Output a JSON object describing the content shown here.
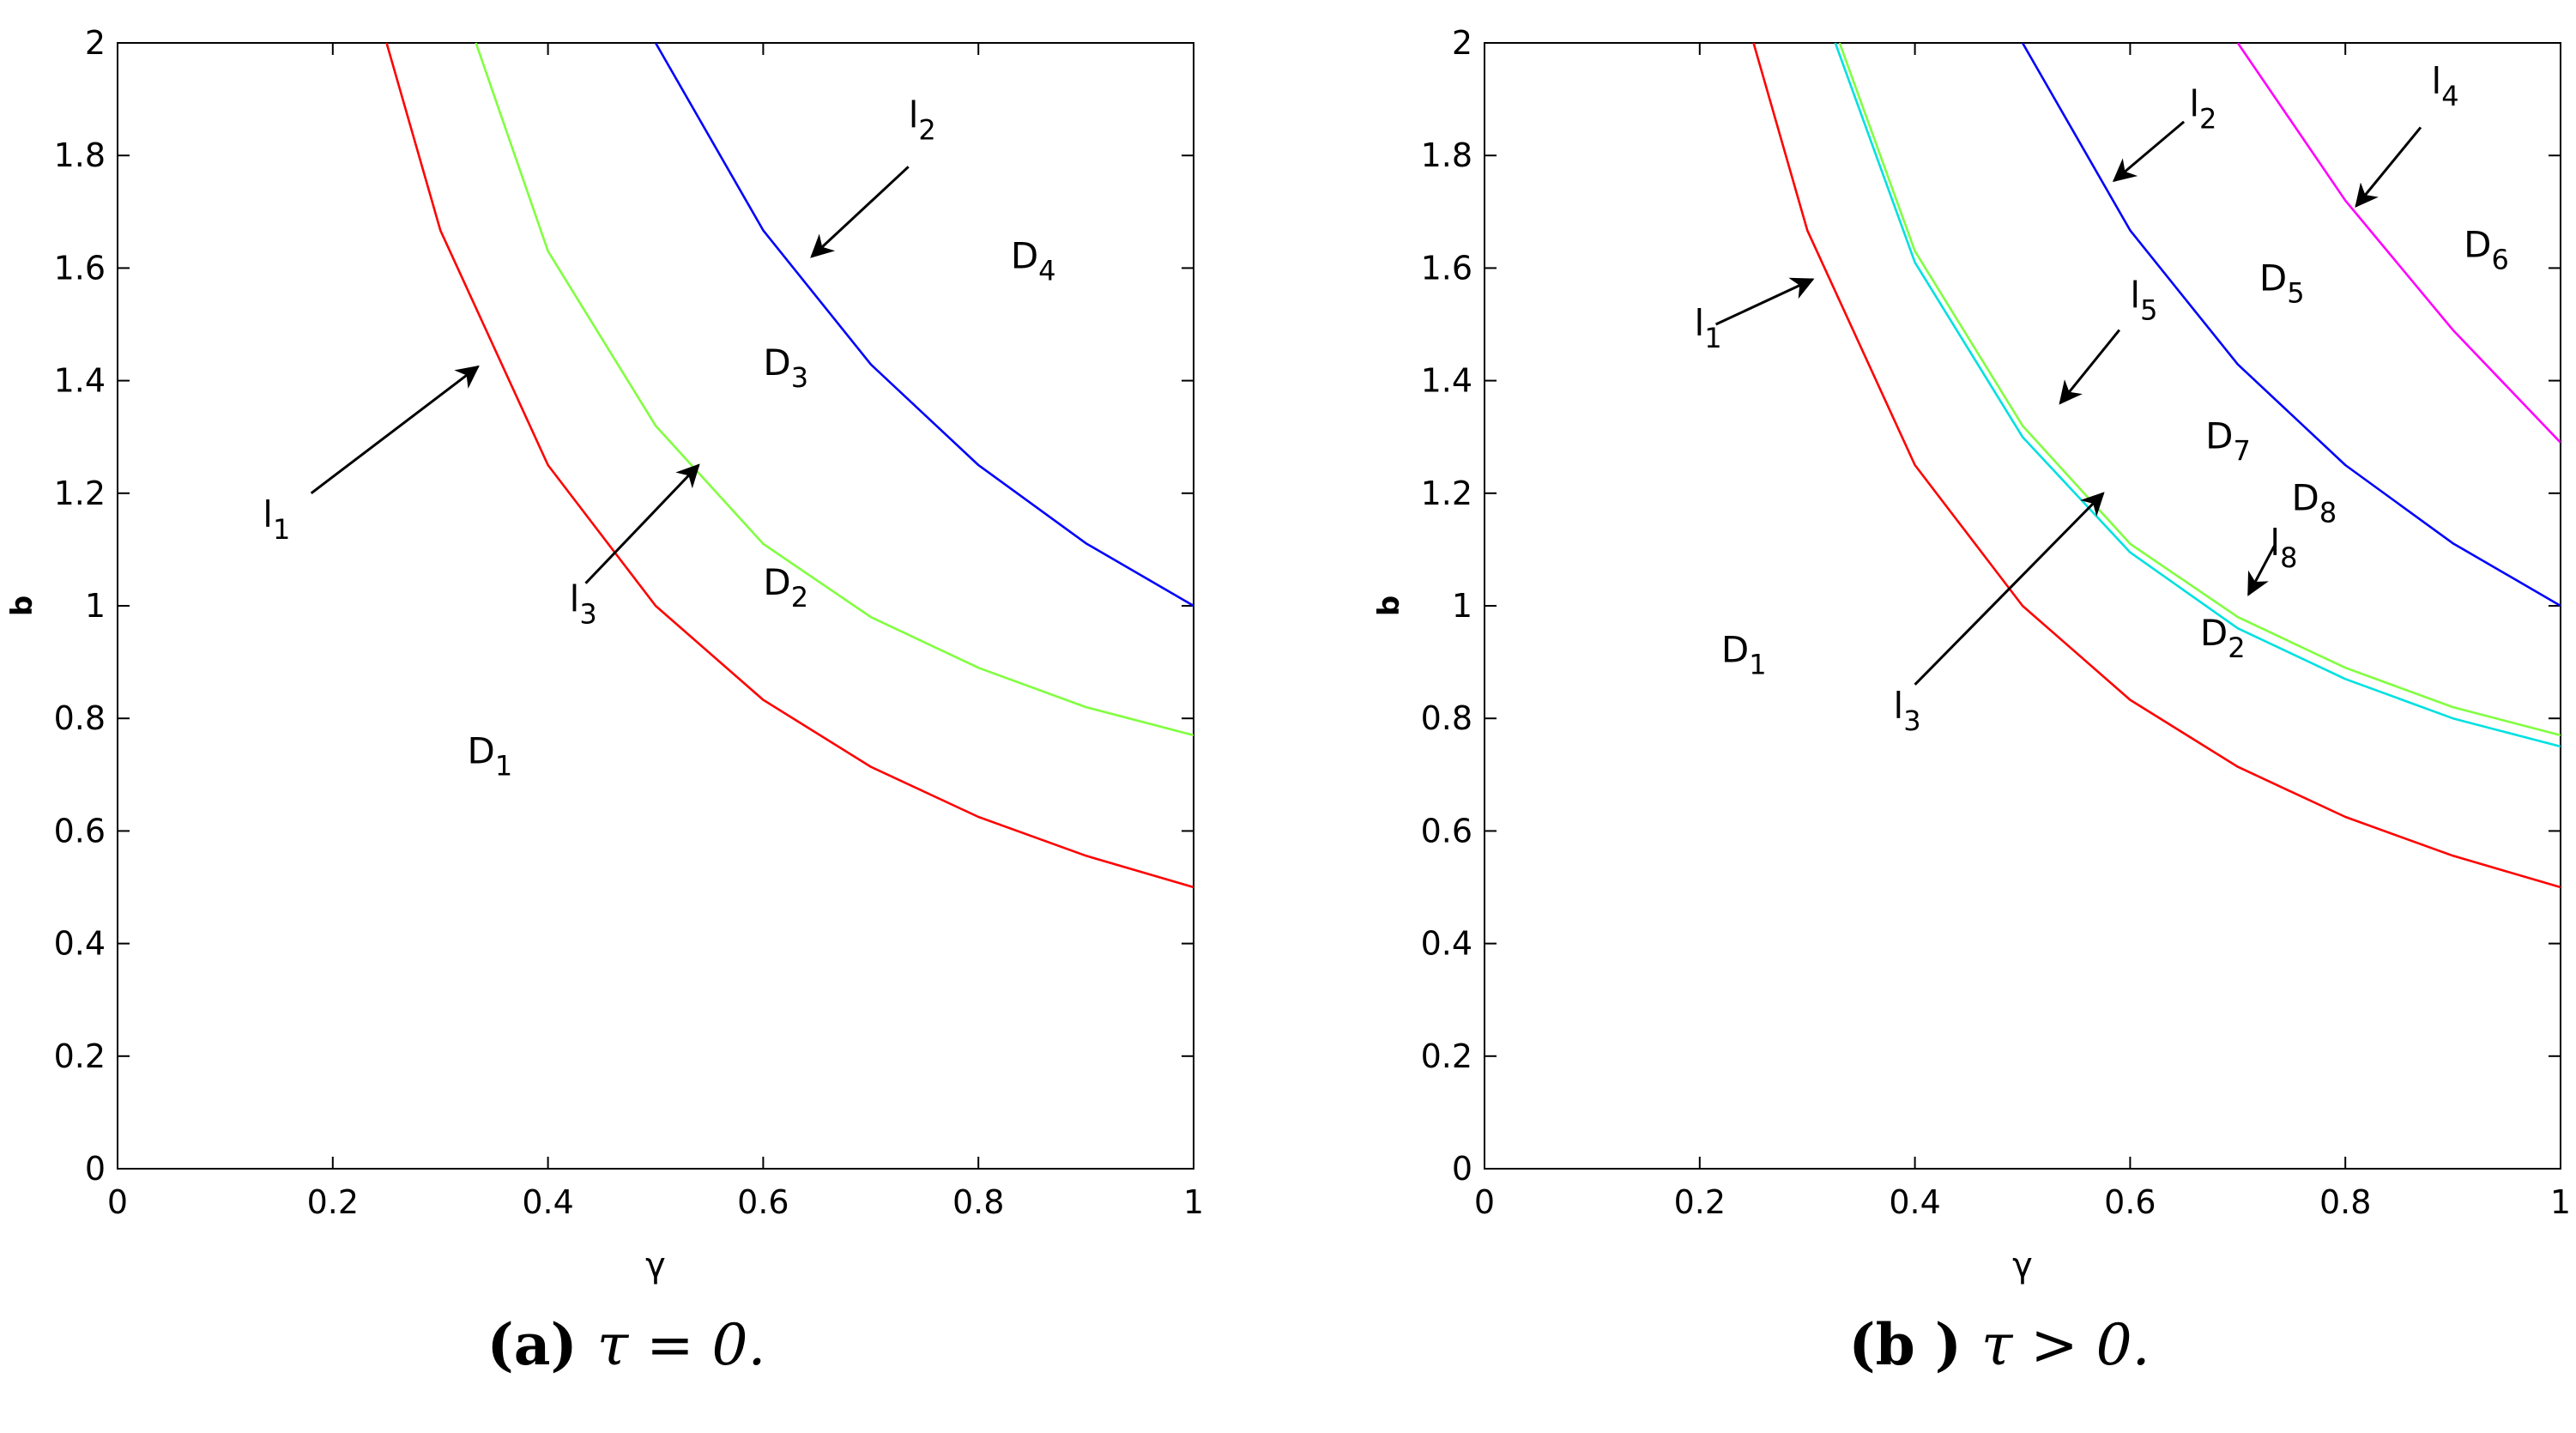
{
  "chart_data": [
    {
      "type": "line",
      "xlabel": "γ",
      "ylabel": "b",
      "xlim": [
        0,
        1
      ],
      "ylim": [
        0,
        2
      ],
      "xticks": [
        "0",
        "0.2",
        "0.4",
        "0.6",
        "0.8",
        "1"
      ],
      "yticks": [
        "0",
        "0.2",
        "0.4",
        "0.6",
        "0.8",
        "1",
        "1.2",
        "1.4",
        "1.6",
        "1.8",
        "2"
      ],
      "caption": {
        "tag": "(a)",
        "text": "τ = 0."
      },
      "series": [
        {
          "color": "#ff0000",
          "x": [
            0.25,
            0.3,
            0.4,
            0.5,
            0.6,
            0.7,
            0.8,
            0.9,
            1.0
          ],
          "y": [
            2.0,
            1.667,
            1.25,
            1.0,
            0.833,
            0.714,
            0.625,
            0.556,
            0.5
          ]
        },
        {
          "color": "#80ff40",
          "x": [
            0.333,
            0.4,
            0.5,
            0.6,
            0.7,
            0.8,
            0.9,
            1.0
          ],
          "y": [
            2.0,
            1.63,
            1.32,
            1.11,
            0.98,
            0.89,
            0.82,
            0.77
          ]
        },
        {
          "color": "#0000ff",
          "x": [
            0.5,
            0.6,
            0.7,
            0.8,
            0.9,
            1.0
          ],
          "y": [
            2.0,
            1.667,
            1.429,
            1.25,
            1.111,
            1.0
          ]
        }
      ],
      "regions": [
        {
          "base": "D",
          "sub": "1",
          "x": 0.325,
          "y": 0.72
        },
        {
          "base": "D",
          "sub": "2",
          "x": 0.6,
          "y": 1.02
        },
        {
          "base": "D",
          "sub": "3",
          "x": 0.6,
          "y": 1.41
        },
        {
          "base": "D",
          "sub": "4",
          "x": 0.83,
          "y": 1.6
        }
      ],
      "annotations": [
        {
          "base": "l",
          "sub": "1",
          "x": 0.135,
          "y": 1.14,
          "arrow_from": [
            0.18,
            1.2
          ],
          "arrow_to": [
            0.335,
            1.425
          ]
        },
        {
          "base": "l",
          "sub": "2",
          "x": 0.735,
          "y": 1.85,
          "arrow_from": [
            0.735,
            1.78
          ],
          "arrow_to": [
            0.645,
            1.62
          ]
        },
        {
          "base": "l",
          "sub": "3",
          "x": 0.42,
          "y": 0.99,
          "arrow_from": [
            0.435,
            1.04
          ],
          "arrow_to": [
            0.54,
            1.25
          ]
        }
      ]
    },
    {
      "type": "line",
      "xlabel": "γ",
      "ylabel": "b",
      "xlim": [
        0,
        1
      ],
      "ylim": [
        0,
        2
      ],
      "xticks": [
        "0",
        "0.2",
        "0.4",
        "0.6",
        "0.8",
        "1"
      ],
      "yticks": [
        "0",
        "0.2",
        "0.4",
        "0.6",
        "0.8",
        "1",
        "1.2",
        "1.4",
        "1.6",
        "1.8",
        "2"
      ],
      "caption": {
        "tag": "(b )",
        "text": "τ > 0."
      },
      "series": [
        {
          "color": "#ff0000",
          "x": [
            0.25,
            0.3,
            0.4,
            0.5,
            0.6,
            0.7,
            0.8,
            0.9,
            1.0
          ],
          "y": [
            2.0,
            1.667,
            1.25,
            1.0,
            0.833,
            0.714,
            0.625,
            0.556,
            0.5
          ]
        },
        {
          "color": "#80ff40",
          "x": [
            0.33,
            0.4,
            0.5,
            0.6,
            0.7,
            0.8,
            0.9,
            1.0
          ],
          "y": [
            2.0,
            1.63,
            1.32,
            1.11,
            0.98,
            0.89,
            0.82,
            0.77
          ]
        },
        {
          "color": "#00e0e0",
          "x": [
            0.326,
            0.4,
            0.5,
            0.6,
            0.7,
            0.8,
            0.9,
            1.0
          ],
          "y": [
            2.0,
            1.61,
            1.3,
            1.095,
            0.96,
            0.87,
            0.8,
            0.75
          ]
        },
        {
          "color": "#0000ff",
          "x": [
            0.5,
            0.6,
            0.7,
            0.8,
            0.9,
            1.0
          ],
          "y": [
            2.0,
            1.667,
            1.429,
            1.25,
            1.111,
            1.0
          ]
        },
        {
          "color": "#ff00ff",
          "x": [
            0.7,
            0.8,
            0.9,
            1.0
          ],
          "y": [
            2.0,
            1.72,
            1.49,
            1.29
          ]
        }
      ],
      "regions": [
        {
          "base": "D",
          "sub": "1",
          "x": 0.22,
          "y": 0.9
        },
        {
          "base": "D",
          "sub": "2",
          "x": 0.665,
          "y": 0.93
        },
        {
          "base": "D",
          "sub": "5",
          "x": 0.72,
          "y": 1.56
        },
        {
          "base": "D",
          "sub": "6",
          "x": 0.91,
          "y": 1.62
        },
        {
          "base": "D",
          "sub": "7",
          "x": 0.67,
          "y": 1.28
        },
        {
          "base": "D",
          "sub": "8",
          "x": 0.75,
          "y": 1.17
        }
      ],
      "annotations": [
        {
          "base": "l",
          "sub": "1",
          "x": 0.195,
          "y": 1.48,
          "arrow_from": [
            0.215,
            1.5
          ],
          "arrow_to": [
            0.305,
            1.58
          ]
        },
        {
          "base": "l",
          "sub": "2",
          "x": 0.655,
          "y": 1.87,
          "arrow_from": [
            0.65,
            1.86
          ],
          "arrow_to": [
            0.585,
            1.755
          ]
        },
        {
          "base": "l",
          "sub": "3",
          "x": 0.38,
          "y": 0.8,
          "arrow_from": [
            0.4,
            0.86
          ],
          "arrow_to": [
            0.575,
            1.2
          ]
        },
        {
          "base": "l",
          "sub": "4",
          "x": 0.88,
          "y": 1.91,
          "arrow_from": [
            0.87,
            1.85
          ],
          "arrow_to": [
            0.81,
            1.71
          ]
        },
        {
          "base": "l",
          "sub": "5",
          "x": 0.6,
          "y": 1.53,
          "arrow_from": [
            0.59,
            1.49
          ],
          "arrow_to": [
            0.535,
            1.36
          ]
        },
        {
          "base": "l",
          "sub": "8",
          "x": 0.73,
          "y": 1.09,
          "arrow_from": [
            0.735,
            1.11
          ],
          "arrow_to": [
            0.71,
            1.02
          ]
        }
      ]
    }
  ]
}
